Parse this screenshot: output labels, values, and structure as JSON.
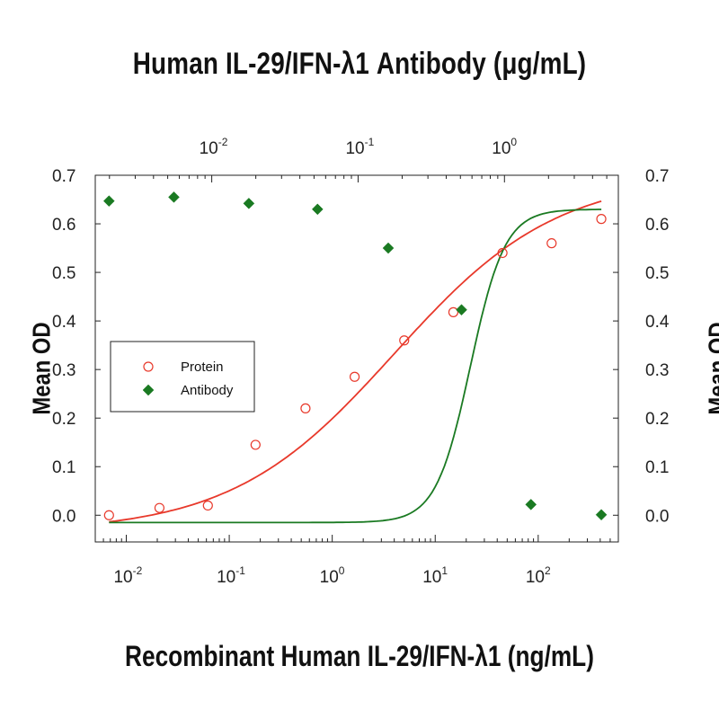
{
  "chart_data": {
    "type": "scatter",
    "title": "Human IL-29/IFN-λ1 Antibody (μg/mL)",
    "xlabel": "Recombinant Human IL-29/IFN-λ1 (ng/mL)",
    "ylabel": "Mean OD",
    "x_scale": "log",
    "xlim": [
      0.005,
      600
    ],
    "ylim": [
      -0.055,
      0.7
    ],
    "x_ticks": [
      {
        "base": "10",
        "exp": "-2",
        "value": 0.01
      },
      {
        "base": "10",
        "exp": "-1",
        "value": 0.1
      },
      {
        "base": "10",
        "exp": "0",
        "value": 1
      },
      {
        "base": "10",
        "exp": "1",
        "value": 10
      },
      {
        "base": "10",
        "exp": "2",
        "value": 100
      }
    ],
    "top_axis": {
      "scale": "log",
      "range": [
        0.0016,
        6
      ],
      "ticks": [
        {
          "base": "10",
          "exp": "-2",
          "value": 0.01
        },
        {
          "base": "10",
          "exp": "-1",
          "value": 0.1
        },
        {
          "base": "10",
          "exp": "0",
          "value": 1
        }
      ]
    },
    "y_ticks": [
      "0.0",
      "0.1",
      "0.2",
      "0.3",
      "0.4",
      "0.5",
      "0.6",
      "0.7"
    ],
    "legend_position": "center-left",
    "series": [
      {
        "name": "Protein",
        "marker": "open-circle",
        "color": "#e8392b",
        "points": [
          {
            "x": 0.0068,
            "y": 0.0
          },
          {
            "x": 0.021,
            "y": 0.015
          },
          {
            "x": 0.062,
            "y": 0.02
          },
          {
            "x": 0.18,
            "y": 0.145
          },
          {
            "x": 0.55,
            "y": 0.22
          },
          {
            "x": 1.65,
            "y": 0.285
          },
          {
            "x": 5.0,
            "y": 0.36
          },
          {
            "x": 15.0,
            "y": 0.418
          },
          {
            "x": 45.0,
            "y": 0.54
          },
          {
            "x": 135.0,
            "y": 0.56
          },
          {
            "x": 410.0,
            "y": 0.61
          }
        ],
        "fit": {
          "bottom": -0.035,
          "top": 0.7,
          "ec50": 4.0,
          "hill": 0.55
        }
      },
      {
        "name": "Antibody",
        "marker": "filled-diamond",
        "color": "#1a7a22",
        "points": [
          {
            "x": 0.0068,
            "y": 0.647
          },
          {
            "x": 0.029,
            "y": 0.655
          },
          {
            "x": 0.155,
            "y": 0.642
          },
          {
            "x": 0.72,
            "y": 0.63
          },
          {
            "x": 3.5,
            "y": 0.55
          },
          {
            "x": 18.0,
            "y": 0.423
          },
          {
            "x": 85.0,
            "y": 0.022
          },
          {
            "x": 410.0,
            "y": 0.001
          }
        ],
        "fit": {
          "bottom": -0.015,
          "top": 0.63,
          "ec50": 22.0,
          "hill": 2.6
        }
      }
    ]
  }
}
